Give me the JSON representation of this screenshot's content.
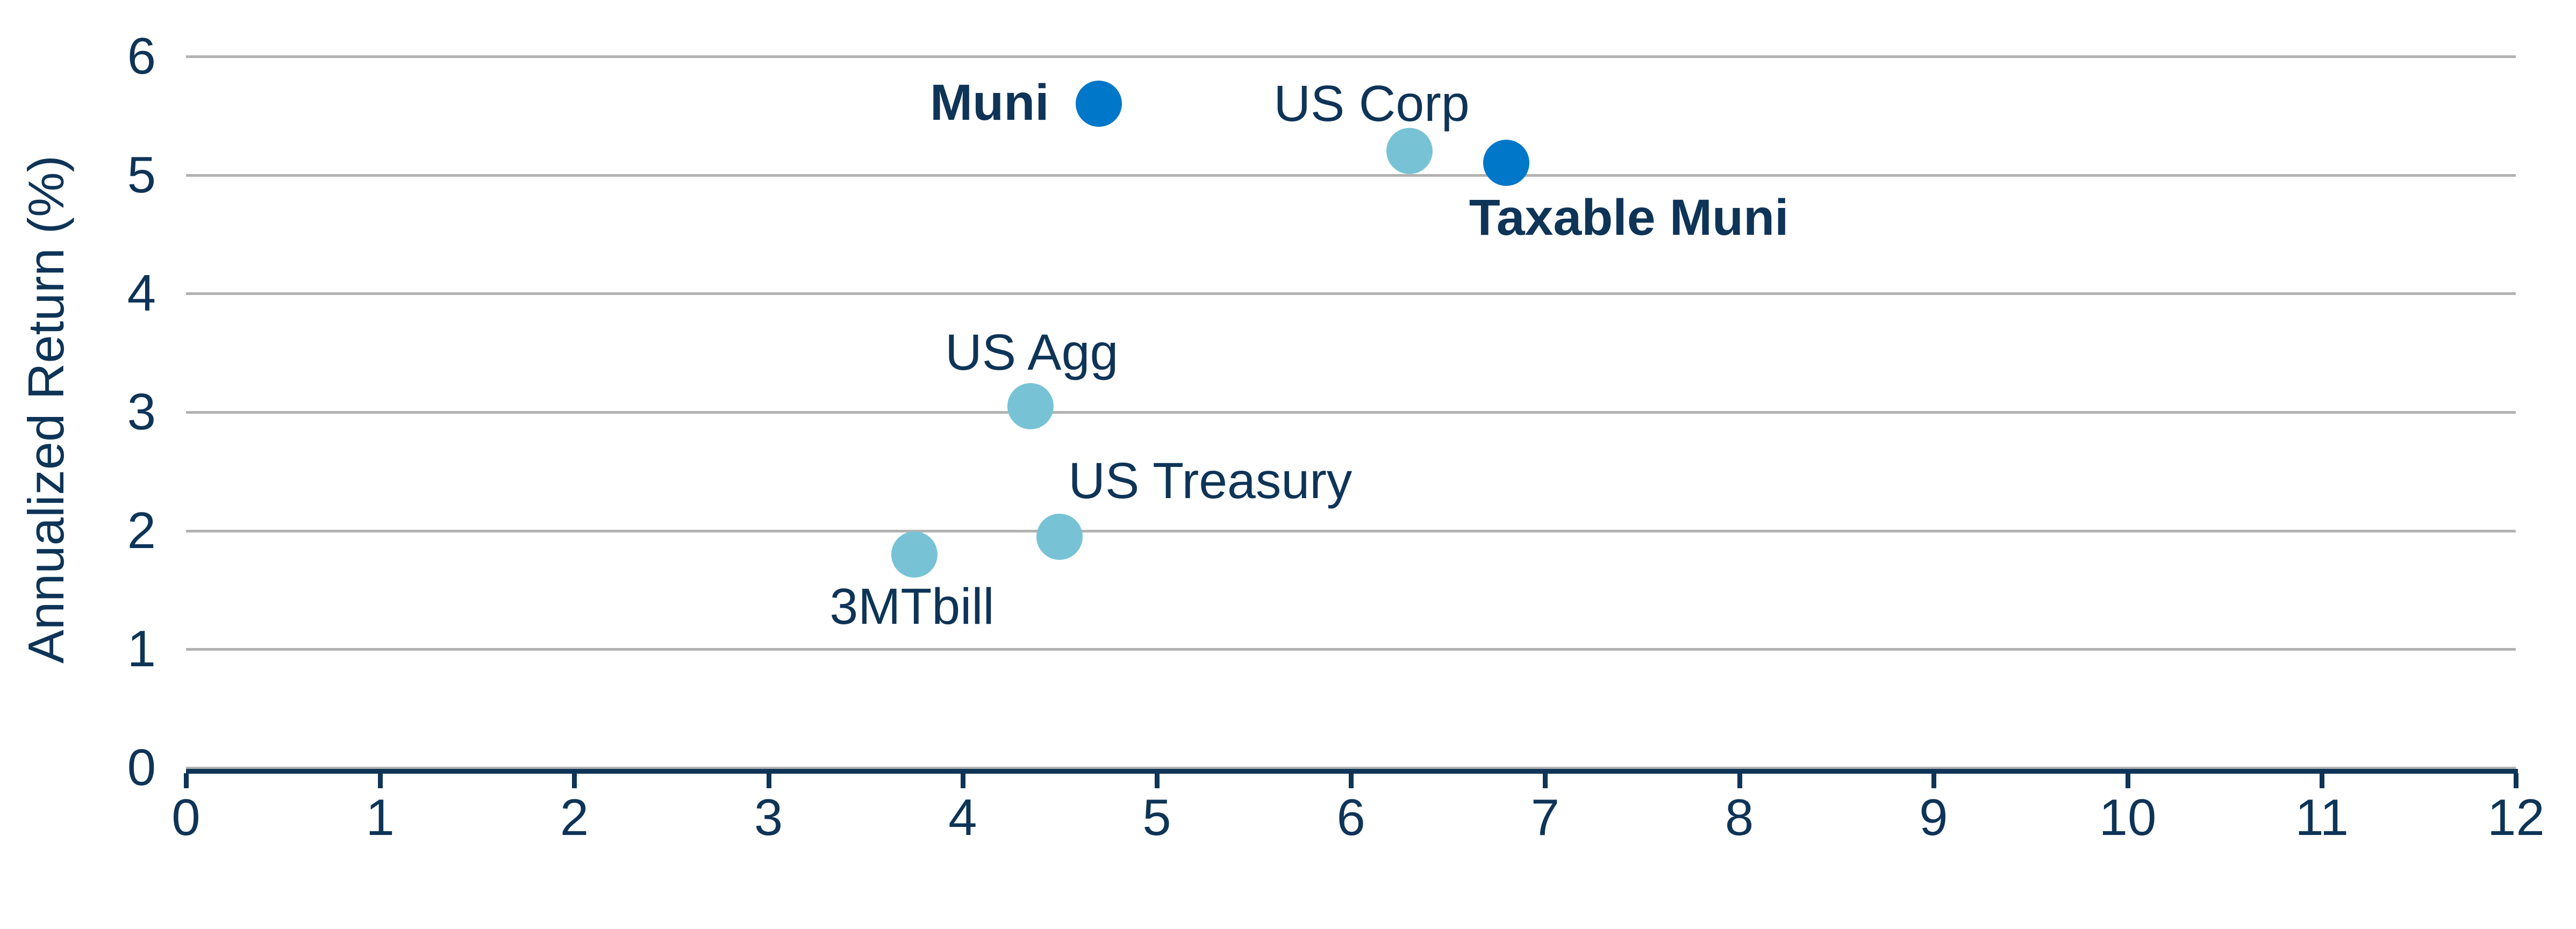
{
  "chart_data": {
    "type": "scatter",
    "title": "",
    "xlabel": "",
    "ylabel": "Annualized Return (%)",
    "xlim": [
      0,
      12
    ],
    "ylim": [
      0,
      6
    ],
    "x_ticks": [
      0,
      1,
      2,
      3,
      4,
      5,
      6,
      7,
      8,
      9,
      10,
      11,
      12
    ],
    "y_ticks": [
      0,
      1,
      2,
      3,
      4,
      5,
      6
    ],
    "grid": "horizontal-only",
    "legend": "none",
    "points": [
      {
        "name": "Muni",
        "x": 4.7,
        "y": 5.6,
        "color_key": "dark_blue",
        "bold_label": true,
        "label_anchor": "right-edge",
        "label_offset": [
          -92,
          -2
        ]
      },
      {
        "name": "US Corp",
        "x": 6.3,
        "y": 5.2,
        "color_key": "light_blue",
        "bold_label": false,
        "label_anchor": "center",
        "label_offset": [
          -70,
          -88
        ]
      },
      {
        "name": "Taxable Muni",
        "x": 6.8,
        "y": 5.1,
        "color_key": "dark_blue",
        "bold_label": true,
        "label_anchor": "center",
        "label_offset": [
          228,
          102
        ]
      },
      {
        "name": "US Agg",
        "x": 4.35,
        "y": 3.05,
        "color_key": "light_blue",
        "bold_label": false,
        "label_anchor": "center",
        "label_offset": [
          2,
          -100
        ]
      },
      {
        "name": "US Treasury",
        "x": 4.5,
        "y": 1.95,
        "color_key": "light_blue",
        "bold_label": false,
        "label_anchor": "center",
        "label_offset": [
          280,
          -104
        ]
      },
      {
        "name": "3MTbill",
        "x": 3.75,
        "y": 1.8,
        "color_key": "light_blue",
        "bold_label": false,
        "label_anchor": "center",
        "label_offset": [
          -4,
          97
        ]
      }
    ],
    "colors": {
      "dark_blue": "#0077C8",
      "light_blue": "#77C3D5",
      "axis": "#0E3457",
      "text": "#0E3457",
      "grid": "#B2B2B2"
    }
  }
}
